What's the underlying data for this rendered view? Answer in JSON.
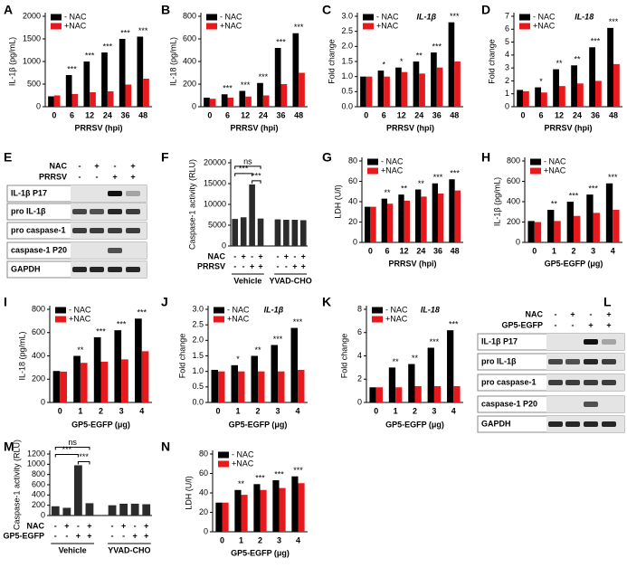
{
  "chart_data": [
    {
      "panel": "A",
      "type": "bar",
      "ylabel": "IL-1β (pg/mL)",
      "xlabel": "PRRSV (hpi)",
      "categories": [
        "0",
        "6",
        "12",
        "24",
        "36",
        "48"
      ],
      "series": [
        {
          "name": "- NAC",
          "color": "#000000",
          "values": [
            230,
            700,
            1000,
            1200,
            1500,
            1550
          ]
        },
        {
          "name": "+NAC",
          "color": "#e8191c",
          "values": [
            250,
            280,
            320,
            340,
            490,
            620
          ]
        }
      ],
      "significance": [
        null,
        "***",
        "***",
        "***",
        "***",
        "***"
      ],
      "ylim": [
        0,
        2000
      ],
      "yticks": [
        0,
        500,
        1000,
        1500,
        2000
      ],
      "legend": "upper left"
    },
    {
      "panel": "B",
      "type": "bar",
      "ylabel": "IL-18 (pg/mL)",
      "xlabel": "PRRSV (hpi)",
      "categories": [
        "0",
        "6",
        "12",
        "24",
        "36",
        "48"
      ],
      "series": [
        {
          "name": "- NAC",
          "color": "#000000",
          "values": [
            80,
            110,
            140,
            210,
            520,
            650
          ]
        },
        {
          "name": "+NAC",
          "color": "#e8191c",
          "values": [
            70,
            80,
            90,
            100,
            200,
            300
          ]
        }
      ],
      "significance": [
        null,
        "***",
        "***",
        "***",
        "***",
        "***"
      ],
      "ylim": [
        0,
        800
      ],
      "yticks": [
        0,
        200,
        400,
        600,
        800
      ],
      "legend": "upper left"
    },
    {
      "panel": "C",
      "type": "bar",
      "ylabel": "Fold change",
      "xlabel": "PRRSV (hpi)",
      "annotation": "IL-1β",
      "categories": [
        "0",
        "6",
        "12",
        "24",
        "36",
        "48"
      ],
      "series": [
        {
          "name": "- NAC",
          "color": "#000000",
          "values": [
            1.0,
            1.2,
            1.3,
            1.5,
            1.8,
            2.8
          ]
        },
        {
          "name": "+NAC",
          "color": "#e8191c",
          "values": [
            1.0,
            1.0,
            1.15,
            1.1,
            1.3,
            1.5
          ]
        }
      ],
      "significance": [
        null,
        "*",
        "*",
        "**",
        "***",
        "***"
      ],
      "ylim": [
        0,
        3
      ],
      "yticks": [
        {
          "value": 0,
          "label": "0.0"
        },
        {
          "value": 0.5,
          "label": "0.5"
        },
        {
          "value": 1,
          "label": "1.0"
        },
        {
          "value": 1.5,
          "label": "1.5"
        },
        {
          "value": 2,
          "label": "2.0"
        },
        {
          "value": 2.5,
          "label": "2.5"
        },
        {
          "value": 3,
          "label": "3.0"
        }
      ],
      "legend": "upper left"
    },
    {
      "panel": "D",
      "type": "bar",
      "ylabel": "Fold change",
      "xlabel": "PRRSV (hpi)",
      "annotation": "IL-18",
      "categories": [
        "0",
        "6",
        "12",
        "24",
        "36",
        "48"
      ],
      "series": [
        {
          "name": "- NAC",
          "color": "#000000",
          "values": [
            1.3,
            1.5,
            2.9,
            3.2,
            4.6,
            6.1
          ]
        },
        {
          "name": "+NAC",
          "color": "#e8191c",
          "values": [
            1.2,
            1.1,
            1.6,
            1.8,
            2.0,
            3.3
          ]
        }
      ],
      "significance": [
        null,
        "*",
        "**",
        "**",
        "***",
        "***"
      ],
      "ylim": [
        0,
        7
      ],
      "yticks": [
        0,
        1,
        2,
        3,
        4,
        5,
        6,
        7
      ],
      "legend": "upper left"
    },
    {
      "panel": "F",
      "type": "bar",
      "ylabel": "Caspase-1 activity (RLU)",
      "color": "#2b2b2b",
      "values": [
        6500,
        6900,
        14800,
        6600,
        6400,
        6300,
        6300,
        6200
      ],
      "conditions": [
        {
          "name": "NAC",
          "signs": [
            "-",
            "+",
            "-",
            "+",
            "-",
            "+",
            "-",
            "+"
          ]
        },
        {
          "name": "PRRSV",
          "signs": [
            "-",
            "-",
            "+",
            "+",
            "-",
            "-",
            "+",
            "+"
          ]
        }
      ],
      "groups": [
        "Vehicle",
        "YVAD-CHO"
      ],
      "annotations": [
        "ns",
        "***",
        "***"
      ],
      "ylim": [
        0,
        20000
      ],
      "yticks": [
        0,
        5000,
        10000,
        15000,
        20000
      ]
    },
    {
      "panel": "G",
      "type": "bar",
      "ylabel": "LDH (U/l)",
      "xlabel": "PRRSV (hpi)",
      "categories": [
        "0",
        "6",
        "12",
        "24",
        "36",
        "48"
      ],
      "series": [
        {
          "name": "- NAC",
          "color": "#000000",
          "values": [
            35,
            43,
            47,
            52,
            58,
            62
          ]
        },
        {
          "name": "+NAC",
          "color": "#e8191c",
          "values": [
            35,
            38,
            41,
            45,
            48,
            51
          ]
        }
      ],
      "significance": [
        null,
        "**",
        "**",
        "**",
        "***",
        "***"
      ],
      "ylim": [
        0,
        80
      ],
      "yticks": [
        0,
        20,
        40,
        60,
        80
      ],
      "legend": "upper left"
    },
    {
      "panel": "H",
      "type": "bar",
      "ylabel": "IL-1β (pg/mL)",
      "xlabel": "GP5-EGFP (μg)",
      "categories": [
        "0",
        "1",
        "2",
        "3",
        "4"
      ],
      "series": [
        {
          "name": "- NAC",
          "color": "#000000",
          "values": [
            210,
            320,
            400,
            470,
            580
          ]
        },
        {
          "name": "+NAC",
          "color": "#e8191c",
          "values": [
            200,
            210,
            260,
            290,
            320
          ]
        }
      ],
      "significance": [
        null,
        "**",
        "***",
        "***",
        "***"
      ],
      "ylim": [
        0,
        800
      ],
      "yticks": [
        0,
        200,
        400,
        600,
        800
      ],
      "legend": "upper left"
    },
    {
      "panel": "I",
      "type": "bar",
      "ylabel": "IL-18 (pg/mL)",
      "xlabel": "GP5-EGFP (μg)",
      "categories": [
        "0",
        "1",
        "2",
        "3",
        "4"
      ],
      "series": [
        {
          "name": "- NAC",
          "color": "#000000",
          "values": [
            270,
            400,
            560,
            620,
            720
          ]
        },
        {
          "name": "+NAC",
          "color": "#e8191c",
          "values": [
            265,
            340,
            350,
            370,
            440
          ]
        }
      ],
      "significance": [
        null,
        "**",
        "***",
        "***",
        "***"
      ],
      "ylim": [
        0,
        800
      ],
      "yticks": [
        0,
        200,
        400,
        600,
        800
      ],
      "legend": "upper left"
    },
    {
      "panel": "J",
      "type": "bar",
      "ylabel": "Fold change",
      "xlabel": "GP5-EGFP (μg)",
      "annotation": "IL-1β",
      "categories": [
        "0",
        "1",
        "2",
        "3",
        "4"
      ],
      "series": [
        {
          "name": "- NAC",
          "color": "#000000",
          "values": [
            1.05,
            1.2,
            1.5,
            1.85,
            2.4
          ]
        },
        {
          "name": "+NAC",
          "color": "#e8191c",
          "values": [
            1.0,
            1.0,
            1.0,
            1.0,
            1.05
          ]
        }
      ],
      "significance": [
        null,
        "*",
        "**",
        "***",
        "***"
      ],
      "ylim": [
        0,
        3
      ],
      "yticks": [
        {
          "value": 0,
          "label": "0.0"
        },
        {
          "value": 0.5,
          "label": "0.5"
        },
        {
          "value": 1,
          "label": "1.0"
        },
        {
          "value": 1.5,
          "label": "1.5"
        },
        {
          "value": 2,
          "label": "2.0"
        },
        {
          "value": 2.5,
          "label": "2.5"
        },
        {
          "value": 3,
          "label": "3.0"
        }
      ],
      "legend": "upper left"
    },
    {
      "panel": "K",
      "type": "bar",
      "ylabel": "Fold change",
      "xlabel": "GP5-EGFP (μg)",
      "annotation": "IL-18",
      "categories": [
        "0",
        "1",
        "2",
        "3",
        "4"
      ],
      "series": [
        {
          "name": "- NAC",
          "color": "#000000",
          "values": [
            1.3,
            3.0,
            3.3,
            4.7,
            6.2
          ]
        },
        {
          "name": "+NAC",
          "color": "#e8191c",
          "values": [
            1.3,
            1.3,
            1.4,
            1.4,
            1.4
          ]
        }
      ],
      "significance": [
        null,
        "**",
        "**",
        "***",
        "***"
      ],
      "ylim": [
        0,
        8
      ],
      "yticks": [
        0,
        2,
        4,
        6,
        8
      ],
      "legend": "upper left"
    },
    {
      "panel": "M",
      "type": "bar",
      "ylabel": "Caspase-1 activity (RLU)",
      "color": "#2b2b2b",
      "values": [
        180,
        150,
        980,
        240,
        200,
        230,
        230,
        220
      ],
      "conditions": [
        {
          "name": "NAC",
          "signs": [
            "-",
            "+",
            "-",
            "+",
            "-",
            "+",
            "-",
            "+"
          ]
        },
        {
          "name": "GP5-EGFP",
          "signs": [
            "-",
            "-",
            "+",
            "+",
            "-",
            "-",
            "+",
            "+"
          ]
        }
      ],
      "groups": [
        "Vehicle",
        "YVAD-CHO"
      ],
      "annotations": [
        "ns",
        "***",
        "***"
      ],
      "ylim": [
        0,
        1200
      ],
      "yticks": [
        0,
        200,
        400,
        600,
        800,
        1000,
        1200
      ]
    },
    {
      "panel": "N",
      "type": "bar",
      "ylabel": "LDH (U/l)",
      "xlabel": "GP5-EGFP (μg)",
      "categories": [
        "0",
        "1",
        "2",
        "3",
        "4"
      ],
      "series": [
        {
          "name": "- NAC",
          "color": "#000000",
          "values": [
            30,
            43,
            49,
            53,
            57
          ]
        },
        {
          "name": "+NAC",
          "color": "#e8191c",
          "values": [
            30,
            38,
            43,
            45,
            50
          ]
        }
      ],
      "significance": [
        null,
        "**",
        "***",
        "***",
        "***"
      ],
      "ylim": [
        0,
        80
      ],
      "yticks": [
        0,
        20,
        40,
        60,
        80
      ],
      "legend": "upper left"
    }
  ],
  "blots": [
    {
      "panel": "E",
      "conditions": [
        {
          "name": "NAC",
          "signs": [
            "-",
            "+",
            "-",
            "+"
          ]
        },
        {
          "name": "PRRSV",
          "signs": [
            "-",
            "-",
            "+",
            "+"
          ]
        }
      ],
      "bands": [
        "IL-1β P17",
        "pro IL-1β",
        "pro caspase-1",
        "caspase-1 P20",
        "GAPDH"
      ]
    },
    {
      "panel": "L",
      "conditions": [
        {
          "name": "NAC",
          "signs": [
            "-",
            "+",
            "-",
            "+"
          ]
        },
        {
          "name": "GP5-EGFP",
          "signs": [
            "-",
            "-",
            "+",
            "+"
          ]
        }
      ],
      "bands": [
        "IL-1β P17",
        "pro IL-1β",
        "pro caspase-1",
        "caspase-1 P20",
        "GAPDH"
      ]
    }
  ]
}
